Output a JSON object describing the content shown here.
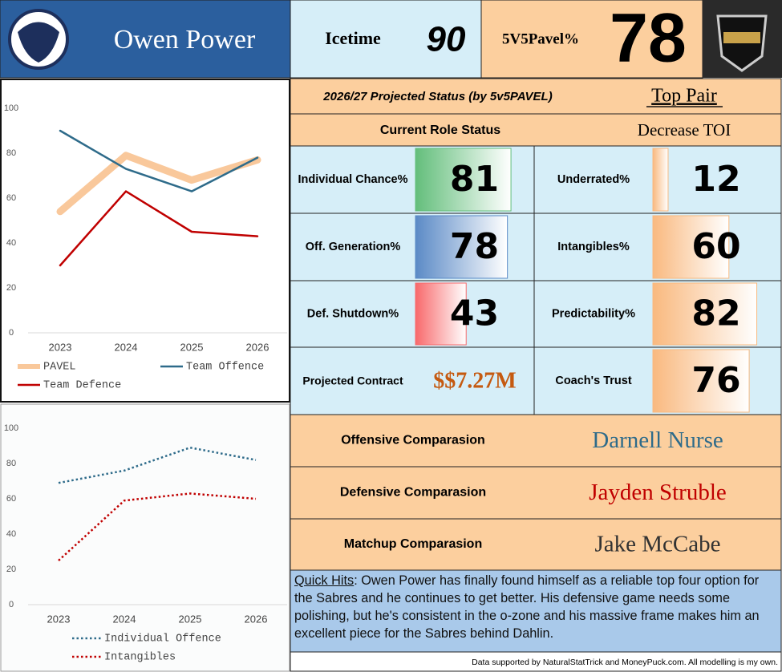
{
  "header": {
    "player": "Owen Power"
  },
  "summary": {
    "icetime_label": "Icetime",
    "icetime": 90,
    "pavel_label": "5V5Pavel%",
    "pavel": 78
  },
  "status": {
    "projected_label": "2026/27 Projected Status (by 5v5PAVEL)",
    "projected": "Top Pair",
    "role_label": "Current Role Status",
    "role": "Decrease TOI"
  },
  "metrics": {
    "xlim": [
      0,
      100
    ],
    "items": [
      {
        "label": "Individual Chance%",
        "value": 81,
        "color": "#63be7b"
      },
      {
        "label": "Off. Generation%",
        "value": 78,
        "color": "#5b8ac6"
      },
      {
        "label": "Def. Shutdown%",
        "value": 43,
        "color": "#f8696b"
      },
      {
        "label": "Underrated%",
        "value": 12,
        "color": "#f9b97f"
      },
      {
        "label": "Intangibles%",
        "value": 60,
        "color": "#f9b97f"
      },
      {
        "label": "Predictability%",
        "value": 82,
        "color": "#f9b97f"
      },
      {
        "label": "Coach's Trust",
        "value": 76,
        "color": "#f9b97f"
      }
    ]
  },
  "contract": {
    "label": "Projected Contract",
    "value": "$$7.27M"
  },
  "comparisons": [
    {
      "label": "Offensive Comparasion",
      "player": "Darnell Nurse",
      "color": "#2e6b8a"
    },
    {
      "label": "Defensive Comparasion",
      "player": "Jayden Struble",
      "color": "#c00000"
    },
    {
      "label": "Matchup Comparasion",
      "player": "Jake McCabe",
      "color": "#333333"
    }
  ],
  "quick_hits": {
    "label": "Quick Hits",
    "text": ": Owen Power has finally found himself as a reliable top four option for the Sabres and he continues to get better. His defensive game needs some polishing, but he's consistent in the o-zone and his massive frame makes him an excellent piece for the Sabres behind Dahlin."
  },
  "footer": "Data supported by NaturalStatTrick and MoneyPuck.com. All modelling is my own.",
  "chart_data": [
    {
      "type": "line",
      "categories": [
        "2023",
        "2024",
        "2025",
        "2026"
      ],
      "ylim": [
        0,
        100
      ],
      "yticks": [
        0,
        20,
        40,
        60,
        80,
        100
      ],
      "grid": false,
      "series": [
        {
          "name": "PAVEL",
          "color": "#f9c89b",
          "linewidth": 9,
          "linestyle": "solid",
          "values": [
            54,
            79,
            68,
            77
          ]
        },
        {
          "name": "Team Offence",
          "color": "#2e6b8a",
          "linewidth": 2.5,
          "linestyle": "solid",
          "values": [
            90,
            73,
            63,
            78
          ]
        },
        {
          "name": "Team Defence",
          "color": "#c00000",
          "linewidth": 2.5,
          "linestyle": "solid",
          "values": [
            30,
            63,
            45,
            43
          ]
        }
      ]
    },
    {
      "type": "line",
      "categories": [
        "2023",
        "2024",
        "2025",
        "2026"
      ],
      "ylim": [
        0,
        100
      ],
      "yticks": [
        0,
        20,
        40,
        60,
        80,
        100
      ],
      "grid": false,
      "series": [
        {
          "name": "Individual Offence",
          "color": "#2e6b8a",
          "linewidth": 2.5,
          "linestyle": "dotted",
          "values": [
            69,
            76,
            89,
            82
          ]
        },
        {
          "name": "Intangibles",
          "color": "#c00000",
          "linewidth": 2.5,
          "linestyle": "dotted",
          "values": [
            25,
            59,
            63,
            60
          ]
        }
      ]
    }
  ]
}
